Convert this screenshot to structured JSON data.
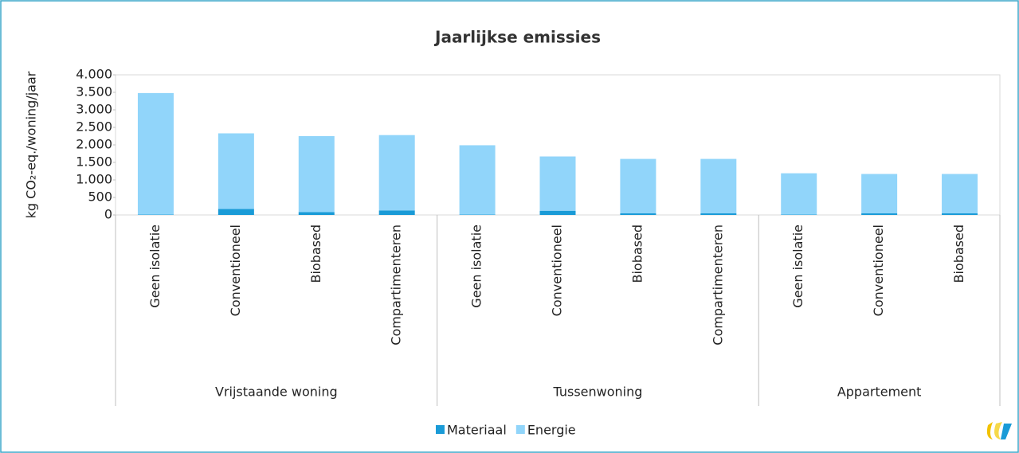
{
  "chart_data": {
    "type": "stacked_bar",
    "title": "Jaarlijkse emissies",
    "y_label": "kg CO₂-eq./woning/jaar",
    "groups": [
      {
        "name": "Vrijstaande woning",
        "categories": [
          "Geen isolatie",
          "Conventioneel",
          "Biobased",
          "Compartimenteren"
        ]
      },
      {
        "name": "Tussenwoning",
        "categories": [
          "Geen isolatie",
          "Conventioneel",
          "Biobased",
          "Compartimenteren"
        ]
      },
      {
        "name": "Appartement",
        "categories": [
          "Geen isolatie",
          "Conventioneel",
          "Biobased"
        ]
      }
    ],
    "series": [
      {
        "name": "Materiaal",
        "color": "#1a9bd7",
        "values": [
          10,
          170,
          80,
          130,
          10,
          120,
          50,
          50,
          10,
          50,
          50
        ]
      },
      {
        "name": "Energie",
        "color": "#91d5fa",
        "values": [
          3470,
          2160,
          2170,
          2150,
          1980,
          1550,
          1550,
          1550,
          1180,
          1120,
          1120
        ]
      }
    ],
    "ylim": [
      0,
      4000
    ],
    "yticks": [
      0,
      500,
      {
        "value": 1000,
        "label": "1.000"
      },
      {
        "value": 1500,
        "label": "1.500"
      },
      {
        "value": 2000,
        "label": "2.000"
      },
      {
        "value": 2500,
        "label": "2.500"
      },
      {
        "value": 3000,
        "label": "3.000"
      },
      {
        "value": 3500,
        "label": "3.500"
      },
      {
        "value": 4000,
        "label": "4.000"
      }
    ],
    "grid": false,
    "legend": "bottom"
  }
}
